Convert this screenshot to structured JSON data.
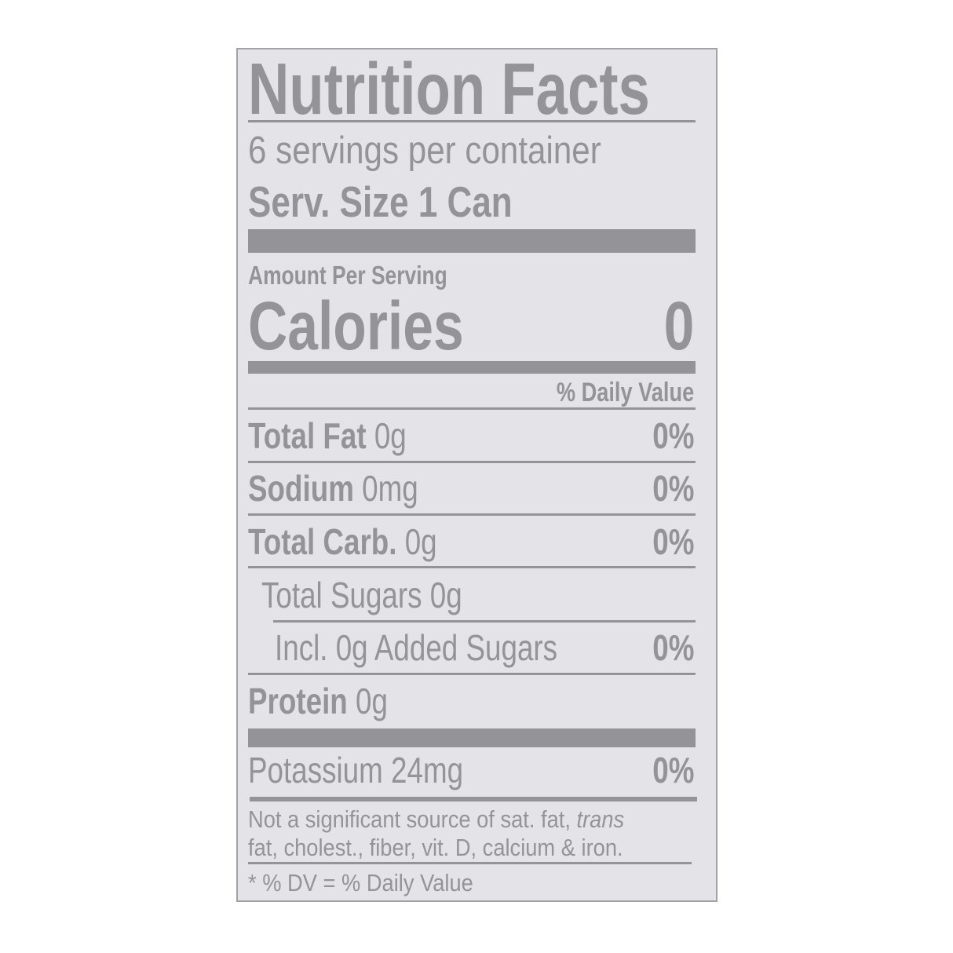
{
  "label": {
    "title": "Nutrition Facts",
    "servings_per_container": "6 servings per container",
    "serving_size": "Serv. Size 1 Can",
    "amount_per_serving": "Amount Per Serving",
    "calories_label": "Calories",
    "calories_value": "0",
    "daily_value_header": "% Daily Value",
    "nutrients": [
      {
        "name": "Total Fat",
        "amount": "0g",
        "dv": "0%"
      },
      {
        "name": "Sodium",
        "amount": "0mg",
        "dv": "0%"
      },
      {
        "name": "Total Carb.",
        "amount": "0g",
        "dv": "0%"
      },
      {
        "name": "Total Sugars 0g"
      },
      {
        "name": "Incl. 0g Added Sugars",
        "dv": "0%"
      },
      {
        "name": "Protein",
        "amount": "0g"
      },
      {
        "name": "Potassium 24mg",
        "dv": "0%"
      }
    ],
    "footnote_line1": "Not a significant source of sat. fat,",
    "footnote_trans": "trans",
    "footnote_line2": "fat, cholest., fiber, vit. D, calcium & iron.",
    "dv_note": "* % DV = % Daily Value"
  },
  "colors": {
    "background": "#e3e3e8",
    "ink": "#949498",
    "page": "#ffffff"
  }
}
